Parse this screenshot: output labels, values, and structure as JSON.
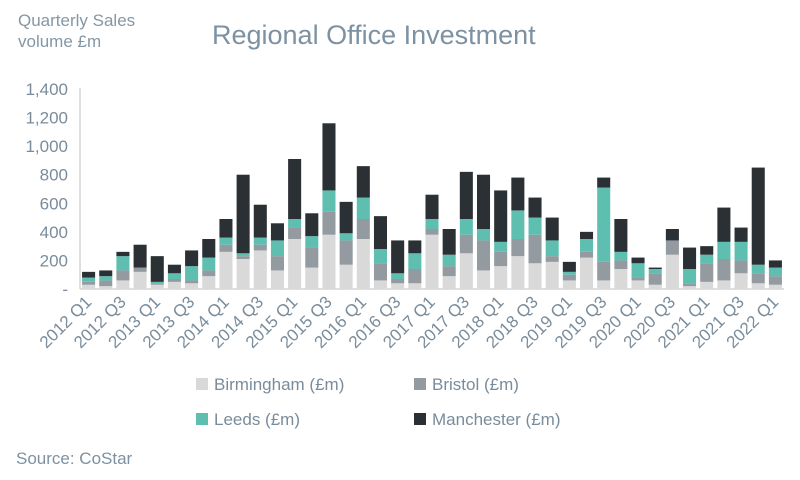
{
  "chart_data": {
    "type": "bar",
    "stacked": true,
    "title": "Regional Office Investment",
    "ylabel": "Quarterly Sales volume £m",
    "xlabel": "",
    "source": "Source: CoStar",
    "ylim": [
      0,
      1400
    ],
    "yticks": [
      0,
      200,
      400,
      600,
      800,
      1000,
      1200,
      1400
    ],
    "ytick_labels": [
      "-",
      "200",
      "400",
      "600",
      "800",
      "1,000",
      "1,200",
      "1,400"
    ],
    "grid": false,
    "legend_position": "bottom",
    "categories": [
      "2012 Q1",
      "2012 Q2",
      "2012 Q3",
      "2012 Q4",
      "2013 Q1",
      "2013 Q2",
      "2013 Q3",
      "2013 Q4",
      "2014 Q1",
      "2014 Q2",
      "2014 Q3",
      "2014 Q4",
      "2015 Q1",
      "2015 Q2",
      "2015 Q3",
      "2015 Q4",
      "2016 Q1",
      "2016 Q2",
      "2016 Q3",
      "2016 Q4",
      "2017 Q1",
      "2017 Q2",
      "2017 Q3",
      "2017 Q4",
      "2018 Q1",
      "2018 Q2",
      "2018 Q3",
      "2018 Q4",
      "2019 Q1",
      "2019 Q2",
      "2019 Q3",
      "2019 Q4",
      "2020 Q1",
      "2020 Q2",
      "2020 Q3",
      "2020 Q4",
      "2021 Q1",
      "2021 Q2",
      "2021 Q3",
      "2021 Q4",
      "2022 Q1"
    ],
    "xtick_labels": [
      "2012 Q1",
      "2012 Q3",
      "2013 Q1",
      "2013 Q3",
      "2014 Q1",
      "2014 Q3",
      "2015 Q1",
      "2015 Q3",
      "2016 Q1",
      "2016 Q3",
      "2017 Q1",
      "2017 Q3",
      "2018 Q1",
      "2018 Q3",
      "2019 Q1",
      "2019 Q3",
      "2020 Q1",
      "2020 Q3",
      "2021 Q1",
      "2021 Q3",
      "2022 Q1"
    ],
    "series": [
      {
        "name": "Birmingham (£m)",
        "color": "#d9d9d9",
        "values": [
          30,
          20,
          60,
          120,
          30,
          50,
          40,
          90,
          260,
          210,
          270,
          130,
          350,
          150,
          380,
          170,
          350,
          60,
          40,
          40,
          380,
          90,
          250,
          130,
          160,
          230,
          180,
          190,
          60,
          220,
          60,
          140,
          60,
          30,
          240,
          20,
          50,
          60,
          110,
          40,
          30
        ]
      },
      {
        "name": "Bristol (£m)",
        "color": "#939aa0",
        "values": [
          20,
          40,
          70,
          30,
          10,
          20,
          20,
          40,
          50,
          20,
          40,
          100,
          80,
          140,
          160,
          170,
          140,
          120,
          30,
          100,
          40,
          70,
          130,
          210,
          100,
          120,
          200,
          40,
          40,
          40,
          130,
          60,
          20,
          80,
          100,
          20,
          130,
          150,
          90,
          70,
          60
        ]
      },
      {
        "name": "Leeds (£m)",
        "color": "#5ebfb1",
        "values": [
          30,
          30,
          100,
          0,
          10,
          40,
          100,
          90,
          50,
          20,
          50,
          110,
          60,
          80,
          150,
          50,
          150,
          100,
          40,
          110,
          70,
          80,
          110,
          80,
          70,
          200,
          120,
          110,
          20,
          90,
          520,
          60,
          100,
          30,
          0,
          100,
          60,
          120,
          130,
          60,
          60
        ]
      },
      {
        "name": "Manchester (£m)",
        "color": "#2b3034",
        "values": [
          40,
          40,
          30,
          160,
          180,
          60,
          110,
          130,
          130,
          550,
          230,
          120,
          420,
          160,
          470,
          220,
          220,
          230,
          230,
          90,
          170,
          180,
          330,
          380,
          360,
          230,
          140,
          160,
          70,
          50,
          70,
          230,
          40,
          10,
          80,
          150,
          60,
          240,
          100,
          680,
          50
        ]
      }
    ]
  }
}
